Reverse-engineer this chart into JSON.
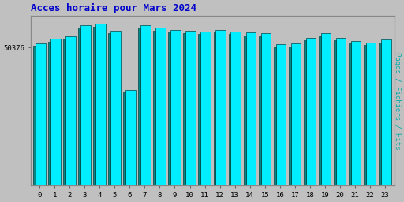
{
  "title": "Acces horaire pour Mars 2024",
  "title_color": "#0000cc",
  "title_fontsize": 9,
  "ylabel_right": "Pages / Fichiers / Hits",
  "ylabel_right_color": "#00aaaa",
  "background_color": "#c0c0c0",
  "plot_bg_color": "#c0c0c0",
  "color_cyan": "#00eeff",
  "color_teal": "#008888",
  "bar_edge_color": "#004444",
  "categories": [
    0,
    1,
    2,
    3,
    4,
    5,
    6,
    7,
    8,
    9,
    10,
    11,
    12,
    13,
    14,
    15,
    16,
    17,
    18,
    19,
    20,
    21,
    22,
    23
  ],
  "values_hits": [
    52000,
    53500,
    54500,
    58500,
    59000,
    56500,
    35000,
    58500,
    57500,
    56800,
    56500,
    56200,
    56800,
    56200,
    55800,
    55500,
    51500,
    51800,
    54000,
    55500,
    54000,
    52800,
    52200,
    53200
  ],
  "values_pages": [
    51000,
    52500,
    53500,
    57500,
    58000,
    55500,
    34000,
    57500,
    56500,
    55800,
    55500,
    55200,
    55800,
    55200,
    54800,
    54500,
    50500,
    50800,
    53000,
    54500,
    53000,
    51800,
    51200,
    52200
  ],
  "ylim": [
    0,
    62000
  ],
  "ytick_value": 50376,
  "ytick_label": "50376"
}
